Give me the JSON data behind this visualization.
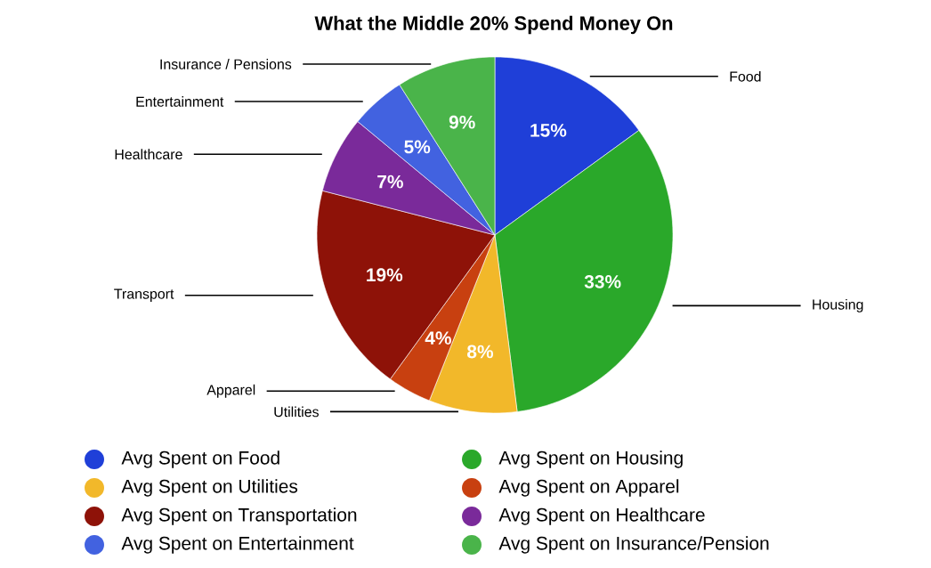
{
  "chart_data": {
    "type": "pie",
    "title": "What the Middle 20% Spend Money On",
    "categories": [
      "Avg Spent on Food",
      "Avg Spent on Housing",
      "Avg Spent on Utilities",
      "Avg Spent on Apparel",
      "Avg Spent on Transportation",
      "Avg Spent on Healthcare",
      "Avg Spent on Entertainment",
      "Avg Spent on Insurance/Pension"
    ],
    "values": [
      15,
      33,
      8,
      4,
      19,
      7,
      5,
      9
    ],
    "value_labels": [
      "15%",
      "33%",
      "8%",
      "4%",
      "19%",
      "7%",
      "5%",
      "9%"
    ],
    "colors": [
      "#1f3fd8",
      "#2aa82a",
      "#f2b82a",
      "#c84010",
      "#8e1208",
      "#7a2a9a",
      "#4262e0",
      "#4ab44a"
    ],
    "annotations": [
      {
        "text": "Food",
        "x": "Avg Spent on Food"
      },
      {
        "text": "Housing",
        "x": "Avg Spent on Housing"
      },
      {
        "text": "Utilities",
        "x": "Avg Spent on Utilities"
      },
      {
        "text": "Apparel",
        "x": "Avg Spent on Apparel"
      },
      {
        "text": "Transport",
        "x": "Avg Spent on Transportation"
      },
      {
        "text": "Healthcare",
        "x": "Avg Spent on Healthcare"
      },
      {
        "text": "Entertainment",
        "x": "Avg Spent on Entertainment"
      },
      {
        "text": "Insurance / Pensions",
        "x": "Avg Spent on Insurance/Pension"
      }
    ],
    "legend": "bottom"
  }
}
